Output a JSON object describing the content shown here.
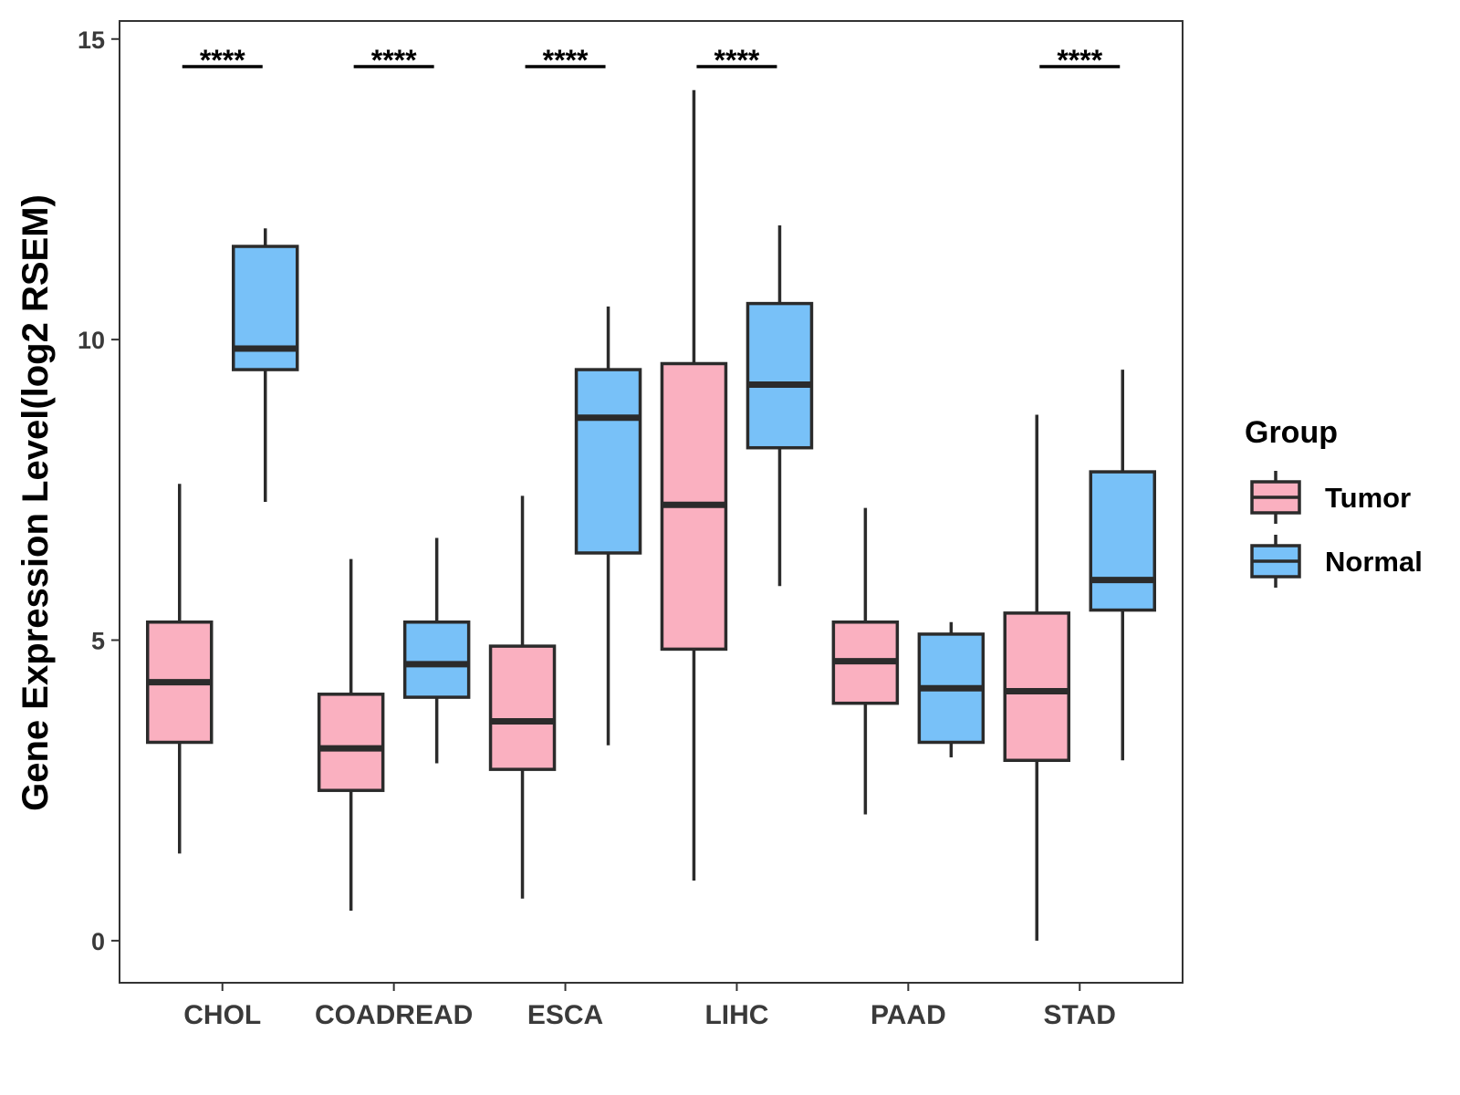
{
  "chart_data": {
    "type": "boxplot",
    "title": "",
    "xlabel": "",
    "ylabel": "Gene Expression Level(log2 RSEM)",
    "ylim": [
      -0.7,
      15.3
    ],
    "yticks": [
      0,
      5,
      10,
      15
    ],
    "grid": false,
    "legend": {
      "title": "Group",
      "position": "right",
      "entries": [
        {
          "name": "Tumor",
          "color": "#FAB0C0"
        },
        {
          "name": "Normal",
          "color": "#78C1F8"
        }
      ]
    },
    "categories": [
      "CHOL",
      "COADREAD",
      "ESCA",
      "LIHC",
      "PAAD",
      "STAD"
    ],
    "series": [
      {
        "name": "Tumor",
        "color": "#FAB0C0",
        "boxes": [
          {
            "min": 1.45,
            "q1": 3.3,
            "median": 4.3,
            "q3": 5.3,
            "max": 7.6
          },
          {
            "min": 0.5,
            "q1": 2.5,
            "median": 3.2,
            "q3": 4.1,
            "max": 6.35
          },
          {
            "min": 0.7,
            "q1": 2.85,
            "median": 3.65,
            "q3": 4.9,
            "max": 7.4
          },
          {
            "min": 1.0,
            "q1": 4.85,
            "median": 7.25,
            "q3": 9.6,
            "max": 14.15
          },
          {
            "min": 2.1,
            "q1": 3.95,
            "median": 4.65,
            "q3": 5.3,
            "max": 7.2
          },
          {
            "min": 0.0,
            "q1": 3.0,
            "median": 4.15,
            "q3": 5.45,
            "max": 8.75
          }
        ]
      },
      {
        "name": "Normal",
        "color": "#78C1F8",
        "boxes": [
          {
            "min": 7.3,
            "q1": 9.5,
            "median": 9.85,
            "q3": 11.55,
            "max": 11.85
          },
          {
            "min": 2.95,
            "q1": 4.05,
            "median": 4.6,
            "q3": 5.3,
            "max": 6.7
          },
          {
            "min": 3.25,
            "q1": 6.45,
            "median": 8.7,
            "q3": 9.5,
            "max": 10.55
          },
          {
            "min": 5.9,
            "q1": 8.2,
            "median": 9.25,
            "q3": 10.6,
            "max": 11.9
          },
          {
            "min": 3.05,
            "q1": 3.3,
            "median": 4.2,
            "q3": 5.1,
            "max": 5.3
          },
          {
            "min": 3.0,
            "q1": 5.5,
            "median": 6.0,
            "q3": 7.8,
            "max": 9.5
          }
        ]
      }
    ],
    "annotations": [
      {
        "category": "CHOL",
        "label": "****"
      },
      {
        "category": "COADREAD",
        "label": "****"
      },
      {
        "category": "ESCA",
        "label": "****"
      },
      {
        "category": "LIHC",
        "label": "****"
      },
      {
        "category": "STAD",
        "label": "****"
      }
    ]
  }
}
